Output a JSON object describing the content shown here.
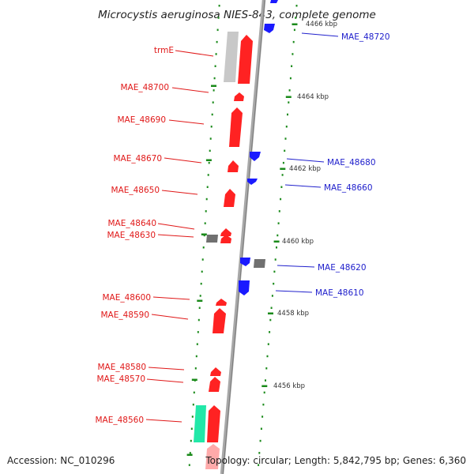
{
  "title": "Microcystis aeruginosa NIES-843, complete genome",
  "footer": {
    "accession": "Accession: NC_010296",
    "summary": "Topology: circular; Length: 5,842,795 bp; Genes: 6,360"
  },
  "colors": {
    "forward_gene": "#ff0000",
    "reverse_gene": "#1a1aff",
    "rrna_or_pseudo": "#c8c8c8",
    "hypothetical": "#808080",
    "trna": "#22e8a8",
    "backbone": "#a0a0a0",
    "tick": "#1a8a1a"
  },
  "ticks": [
    "4464 kbp",
    "4462 kbp",
    "4460 kbp",
    "4458 kbp",
    "4456 kbp",
    "4466 kbp"
  ],
  "labels_left": [
    "trmE",
    "MAE_48700",
    "MAE_48690",
    "MAE_48670",
    "MAE_48650",
    "MAE_48640",
    "MAE_48630",
    "MAE_48600",
    "MAE_48590",
    "MAE_48580",
    "MAE_48570",
    "MAE_48560"
  ],
  "labels_right": [
    "MAE_48720",
    "MAE_48680",
    "MAE_48660",
    "MAE_48620",
    "MAE_48610"
  ]
}
